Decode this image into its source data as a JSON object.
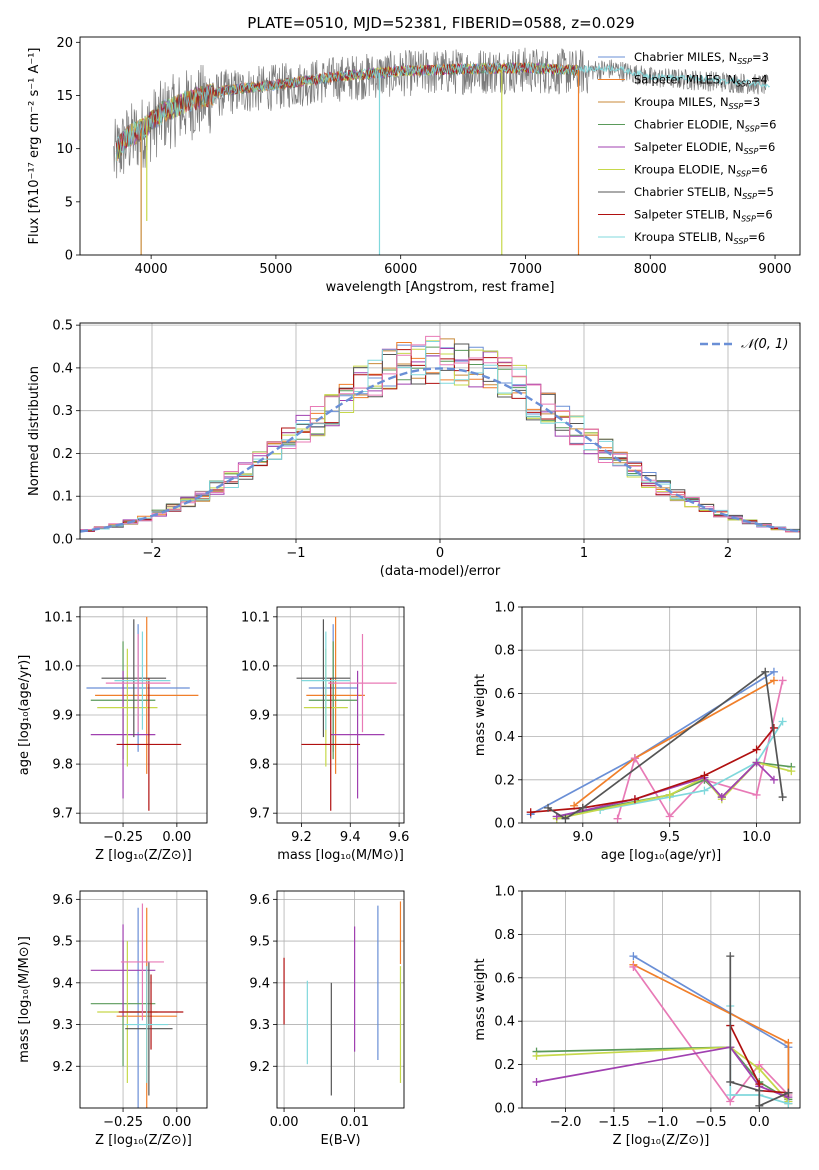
{
  "figure_title": "PLATE=0510, MJD=52381, FIBERID=0588, z=0.029",
  "colors": {
    "chabrier_miles": "#6a8fd6",
    "salpeter_miles": "#f07f2a",
    "kroupa_miles": "#c88a3a",
    "chabrier_elodie": "#5a9a5a",
    "salpeter_elodie": "#a040b0",
    "kroupa_elodie": "#c6d84a",
    "chabrier_stelib": "#555555",
    "salpeter_stelib": "#b01010",
    "kroupa_stelib": "#80d8dc",
    "pink": "#e87ab6",
    "grid": "#b0b0b0"
  },
  "chart_data": [
    {
      "id": "spectrum",
      "type": "line",
      "xlabel": "wavelength [Angstrom, rest frame]",
      "ylabel": "Flux [fλ10⁻¹⁷ erg cm⁻² s⁻¹ A⁻¹]",
      "xlim": [
        3430,
        9200
      ],
      "ylim": [
        0,
        20.5
      ],
      "xticks": [
        "4000",
        "5000",
        "6000",
        "7000",
        "8000",
        "9000"
      ],
      "yticks": [
        "0",
        "5",
        "10",
        "15",
        "20"
      ],
      "grid": false,
      "legend": "top-right",
      "legend_entries": [
        {
          "base": "Chabrier MILES, N",
          "sub": "SSP",
          "tail": "=3"
        },
        {
          "base": "Salpeter MILES, N",
          "sub": "SSP",
          "tail": "=4"
        },
        {
          "base": "Kroupa MILES, N",
          "sub": "SSP",
          "tail": "=3"
        },
        {
          "base": "Chabrier ELODIE, N",
          "sub": "SSP",
          "tail": "=6"
        },
        {
          "base": "Salpeter ELODIE, N",
          "sub": "SSP",
          "tail": "=6"
        },
        {
          "base": "Kroupa ELODIE, N",
          "sub": "SSP",
          "tail": "=6"
        },
        {
          "base": "Chabrier STELIB, N",
          "sub": "SSP",
          "tail": "=5"
        },
        {
          "base": "Salpeter STELIB, N",
          "sub": "SSP",
          "tail": "=6"
        },
        {
          "base": "Kroupa STELIB, N",
          "sub": "SSP",
          "tail": "=6"
        }
      ],
      "continuum": [
        [
          3700,
          9.5
        ],
        [
          3800,
          11.0
        ],
        [
          3950,
          12.0
        ],
        [
          4100,
          13.5
        ],
        [
          4300,
          14.5
        ],
        [
          4600,
          15.5
        ],
        [
          5000,
          16.0
        ],
        [
          5500,
          16.8
        ],
        [
          6000,
          17.3
        ],
        [
          6500,
          17.5
        ],
        [
          7000,
          17.6
        ],
        [
          7400,
          17.4
        ],
        [
          7700,
          17.6
        ],
        [
          8000,
          16.8
        ],
        [
          8300,
          16.6
        ],
        [
          8700,
          16.3
        ],
        [
          9000,
          16.0
        ]
      ],
      "model_end": 7430,
      "data_end": 8950,
      "dips": [
        {
          "x": 3920,
          "y": 0
        },
        {
          "x": 3965,
          "y": 3.2
        },
        {
          "x": 5830,
          "y": 0
        },
        {
          "x": 6810,
          "y": 0
        },
        {
          "x": 7425,
          "y": 0
        }
      ]
    },
    {
      "id": "residuals",
      "type": "histogram",
      "xlabel": "(data-model)/error",
      "ylabel": "Normed distribution",
      "xlim": [
        -2.5,
        2.5
      ],
      "ylim": [
        0,
        0.505
      ],
      "xticks": [
        "−2",
        "−1",
        "0",
        "1",
        "2"
      ],
      "yticks": [
        "0.0",
        "0.1",
        "0.2",
        "0.3",
        "0.4",
        "0.5"
      ],
      "grid": true,
      "legend": "top-right",
      "legend_label": "𝒩(0, 1)",
      "bin_width": 0.1,
      "gaussian": {
        "mean": 0,
        "sigma": 1
      }
    },
    {
      "id": "age_vs_Z",
      "type": "errorbar",
      "xlabel": "Z [log₁₀(Z/Z⊙)]",
      "ylabel": "age  [log₁₀(age/yr)]",
      "xlim": [
        -0.45,
        0.14
      ],
      "ylim": [
        9.68,
        10.12
      ],
      "xticks": [
        "−0.25",
        "0.00"
      ],
      "yticks": [
        "9.7",
        "9.8",
        "9.9",
        "10.0",
        "10.1"
      ],
      "grid": true,
      "points": [
        {
          "c": "#6a8fd6",
          "x": -0.18,
          "xerr": 0.24,
          "y": 9.955,
          "yerr": 0.13
        },
        {
          "c": "#f07f2a",
          "x": -0.14,
          "xerr": 0.24,
          "y": 9.94,
          "yerr": 0.16
        },
        {
          "c": "#5a9a5a",
          "x": -0.25,
          "xerr": 0.15,
          "y": 9.93,
          "yerr": 0.12
        },
        {
          "c": "#a040b0",
          "x": -0.25,
          "xerr": 0.15,
          "y": 9.86,
          "yerr": 0.13
        },
        {
          "c": "#c6d84a",
          "x": -0.23,
          "xerr": 0.14,
          "y": 9.915,
          "yerr": 0.12
        },
        {
          "c": "#555555",
          "x": -0.2,
          "xerr": 0.15,
          "y": 9.975,
          "yerr": 0.12
        },
        {
          "c": "#b01010",
          "x": -0.13,
          "xerr": 0.15,
          "y": 9.84,
          "yerr": 0.135
        },
        {
          "c": "#80d8dc",
          "x": -0.16,
          "xerr": 0.13,
          "y": 9.97,
          "yerr": 0.1
        },
        {
          "c": "#e87ab6",
          "x": -0.18,
          "xerr": 0.15,
          "y": 9.965,
          "yerr": 0.1
        }
      ]
    },
    {
      "id": "age_vs_mass",
      "type": "errorbar",
      "xlabel": "mass [log₁₀(M/M⊙)]",
      "ylabel": "",
      "xlim": [
        9.1,
        9.62
      ],
      "ylim": [
        9.68,
        10.12
      ],
      "xticks": [
        "9.2",
        "9.4",
        "9.6"
      ],
      "yticks": [
        "9.7",
        "9.8",
        "9.9",
        "10.0",
        "10.1"
      ],
      "grid": true,
      "points": [
        {
          "c": "#6a8fd6",
          "x": 9.33,
          "xerr": 0.1,
          "y": 9.955,
          "yerr": 0.13
        },
        {
          "c": "#f07f2a",
          "x": 9.34,
          "xerr": 0.12,
          "y": 9.94,
          "yerr": 0.16
        },
        {
          "c": "#5a9a5a",
          "x": 9.33,
          "xerr": 0.1,
          "y": 9.93,
          "yerr": 0.12
        },
        {
          "c": "#a040b0",
          "x": 9.43,
          "xerr": 0.11,
          "y": 9.86,
          "yerr": 0.13
        },
        {
          "c": "#c6d84a",
          "x": 9.3,
          "xerr": 0.09,
          "y": 9.915,
          "yerr": 0.12
        },
        {
          "c": "#555555",
          "x": 9.29,
          "xerr": 0.11,
          "y": 9.975,
          "yerr": 0.12
        },
        {
          "c": "#b01010",
          "x": 9.32,
          "xerr": 0.12,
          "y": 9.84,
          "yerr": 0.135
        },
        {
          "c": "#80d8dc",
          "x": 9.3,
          "xerr": 0.1,
          "y": 9.97,
          "yerr": 0.1
        },
        {
          "c": "#e87ab6",
          "x": 9.45,
          "xerr": 0.14,
          "y": 9.965,
          "yerr": 0.1
        }
      ]
    },
    {
      "id": "weight_vs_age",
      "type": "line",
      "xlabel": "age  [log₁₀(age/yr)]",
      "ylabel": "mass weight",
      "xlim": [
        8.65,
        10.25
      ],
      "ylim": [
        0,
        1
      ],
      "xticks": [
        "9.0",
        "9.5",
        "10.0"
      ],
      "yticks": [
        "0.0",
        "0.2",
        "0.4",
        "0.6",
        "0.8",
        "1.0"
      ],
      "grid": true,
      "series": [
        {
          "c": "#6a8fd6",
          "points": [
            [
              8.7,
              0.04
            ],
            [
              9.3,
              0.3
            ],
            [
              10.1,
              0.7
            ]
          ]
        },
        {
          "c": "#f07f2a",
          "points": [
            [
              8.95,
              0.08
            ],
            [
              9.3,
              0.3
            ],
            [
              10.1,
              0.66
            ]
          ]
        },
        {
          "c": "#e87ab6",
          "points": [
            [
              9.2,
              0.02
            ],
            [
              9.3,
              0.3
            ],
            [
              9.5,
              0.03
            ],
            [
              9.7,
              0.2
            ],
            [
              10.0,
              0.13
            ],
            [
              10.15,
              0.66
            ]
          ]
        },
        {
          "c": "#80d8dc",
          "points": [
            [
              9.1,
              0.06
            ],
            [
              9.5,
              0.12
            ],
            [
              9.7,
              0.15
            ],
            [
              10.0,
              0.28
            ],
            [
              10.15,
              0.47
            ]
          ]
        },
        {
          "c": "#5a9a5a",
          "points": [
            [
              8.85,
              0.03
            ],
            [
              9.5,
              0.13
            ],
            [
              9.7,
              0.2
            ],
            [
              9.8,
              0.12
            ],
            [
              10.0,
              0.28
            ],
            [
              10.2,
              0.26
            ]
          ]
        },
        {
          "c": "#c6d84a",
          "points": [
            [
              8.85,
              0.02
            ],
            [
              9.5,
              0.13
            ],
            [
              9.7,
              0.21
            ],
            [
              9.8,
              0.11
            ],
            [
              10.0,
              0.28
            ],
            [
              10.2,
              0.24
            ]
          ]
        },
        {
          "c": "#a040b0",
          "points": [
            [
              8.85,
              0.03
            ],
            [
              9.3,
              0.11
            ],
            [
              9.7,
              0.21
            ],
            [
              9.8,
              0.12
            ],
            [
              10.0,
              0.28
            ],
            [
              10.1,
              0.2
            ]
          ]
        },
        {
          "c": "#b01010",
          "points": [
            [
              8.7,
              0.05
            ],
            [
              9.0,
              0.07
            ],
            [
              9.3,
              0.11
            ],
            [
              9.7,
              0.22
            ],
            [
              10.0,
              0.34
            ],
            [
              10.1,
              0.44
            ]
          ]
        },
        {
          "c": "#555555",
          "points": [
            [
              8.8,
              0.07
            ],
            [
              8.9,
              0.02
            ],
            [
              9.0,
              0.07
            ],
            [
              10.05,
              0.7
            ],
            [
              10.15,
              0.12
            ]
          ]
        }
      ]
    },
    {
      "id": "mass_vs_Z",
      "type": "errorbar",
      "xlabel": "Z [log₁₀(Z/Z⊙)]",
      "ylabel": "mass [log₁₀(M/M⊙)]",
      "xlim": [
        -0.45,
        0.14
      ],
      "ylim": [
        9.1,
        9.62
      ],
      "xticks": [
        "−0.25",
        "0.00"
      ],
      "yticks": [
        "9.2",
        "9.3",
        "9.4",
        "9.5",
        "9.6"
      ],
      "grid": true,
      "points": [
        {
          "c": "#6a8fd6",
          "x": -0.18,
          "xerr": 0.04,
          "y": 9.33,
          "yerr": 0.25
        },
        {
          "c": "#f07f2a",
          "x": -0.14,
          "xerr": 0.14,
          "y": 9.32,
          "yerr": 0.26
        },
        {
          "c": "#5a9a5a",
          "x": -0.25,
          "xerr": 0.15,
          "y": 9.35,
          "yerr": 0.15
        },
        {
          "c": "#a040b0",
          "x": -0.25,
          "xerr": 0.15,
          "y": 9.43,
          "yerr": 0.11
        },
        {
          "c": "#c6d84a",
          "x": -0.23,
          "xerr": 0.14,
          "y": 9.33,
          "yerr": 0.17
        },
        {
          "c": "#555555",
          "x": -0.13,
          "xerr": 0.11,
          "y": 9.29,
          "yerr": 0.16
        },
        {
          "c": "#b01010",
          "x": -0.12,
          "xerr": 0.15,
          "y": 9.33,
          "yerr": 0.09
        },
        {
          "c": "#80d8dc",
          "x": -0.14,
          "xerr": 0.1,
          "y": 9.3,
          "yerr": 0.14
        },
        {
          "c": "#e87ab6",
          "x": -0.16,
          "xerr": 0.1,
          "y": 9.45,
          "yerr": 0.14
        }
      ]
    },
    {
      "id": "mass_vs_ebv",
      "type": "errorbar",
      "xlabel": "E(B-V)",
      "ylabel": "",
      "xlim": [
        -0.001,
        0.017
      ],
      "ylim": [
        9.1,
        9.62
      ],
      "xticks": [
        "0.00",
        "0.01"
      ],
      "yticks": [
        "9.2",
        "9.3",
        "9.4",
        "9.5",
        "9.6"
      ],
      "grid": true,
      "points": [
        {
          "c": "#b01010",
          "x": 0.0,
          "xerr": 0,
          "y": 9.38,
          "yerr": 0.08
        },
        {
          "c": "#80d8dc",
          "x": 0.0033,
          "xerr": 0,
          "y": 9.305,
          "yerr": 0.1
        },
        {
          "c": "#555555",
          "x": 0.0067,
          "xerr": 0,
          "y": 9.265,
          "yerr": 0.135
        },
        {
          "c": "#a040b0",
          "x": 0.01,
          "xerr": 0,
          "y": 9.385,
          "yerr": 0.15
        },
        {
          "c": "#6a8fd6",
          "x": 0.0133,
          "xerr": 0,
          "y": 9.4,
          "yerr": 0.185
        },
        {
          "c": "#f07f2a",
          "x": 0.0165,
          "xerr": 0,
          "y": 9.52,
          "yerr": 0.075
        },
        {
          "c": "#c6d84a",
          "x": 0.0165,
          "xerr": 0,
          "y": 9.3,
          "yerr": 0.14
        }
      ]
    },
    {
      "id": "weight_vs_Z",
      "type": "line",
      "xlabel": "Z [log₁₀(Z/Z⊙)]",
      "ylabel": "mass weight",
      "xlim": [
        -2.45,
        0.42
      ],
      "ylim": [
        0,
        1
      ],
      "xticks": [
        "−2.0",
        "−1.5",
        "−1.0",
        "−0.5",
        "0.0"
      ],
      "yticks": [
        "0.0",
        "0.2",
        "0.4",
        "0.6",
        "0.8",
        "1.0"
      ],
      "grid": true,
      "series": [
        {
          "c": "#6a8fd6",
          "points": [
            [
              -1.3,
              0.7
            ],
            [
              0.3,
              0.28
            ],
            [
              0.3,
              0.03
            ]
          ]
        },
        {
          "c": "#f07f2a",
          "points": [
            [
              -1.3,
              0.66
            ],
            [
              0.3,
              0.3
            ],
            [
              0.3,
              0.02
            ]
          ]
        },
        {
          "c": "#e87ab6",
          "points": [
            [
              -1.3,
              0.65
            ],
            [
              -0.3,
              0.03
            ],
            [
              0.0,
              0.2
            ],
            [
              0.3,
              0.06
            ]
          ]
        },
        {
          "c": "#5a9a5a",
          "points": [
            [
              -2.3,
              0.26
            ],
            [
              -0.3,
              0.28
            ],
            [
              0.0,
              0.12
            ],
            [
              0.3,
              0.04
            ]
          ]
        },
        {
          "c": "#c6d84a",
          "points": [
            [
              -2.3,
              0.24
            ],
            [
              -0.3,
              0.28
            ],
            [
              0.0,
              0.18
            ],
            [
              0.3,
              0.03
            ]
          ]
        },
        {
          "c": "#a040b0",
          "points": [
            [
              -2.3,
              0.12
            ],
            [
              -0.3,
              0.28
            ],
            [
              0.0,
              0.1
            ],
            [
              0.3,
              0.05
            ]
          ]
        },
        {
          "c": "#80d8dc",
          "points": [
            [
              -0.3,
              0.47
            ],
            [
              -0.3,
              0.06
            ],
            [
              0.0,
              0.06
            ],
            [
              0.3,
              0.02
            ]
          ]
        },
        {
          "c": "#b01010",
          "points": [
            [
              -0.3,
              0.38
            ],
            [
              0.0,
              0.11
            ],
            [
              0.0,
              0.08
            ],
            [
              0.3,
              0.07
            ]
          ]
        },
        {
          "c": "#555555",
          "points": [
            [
              -0.3,
              0.7
            ],
            [
              -0.3,
              0.12
            ],
            [
              0.0,
              0.08
            ],
            [
              0.0,
              0.01
            ],
            [
              0.3,
              0.07
            ]
          ]
        }
      ]
    }
  ]
}
